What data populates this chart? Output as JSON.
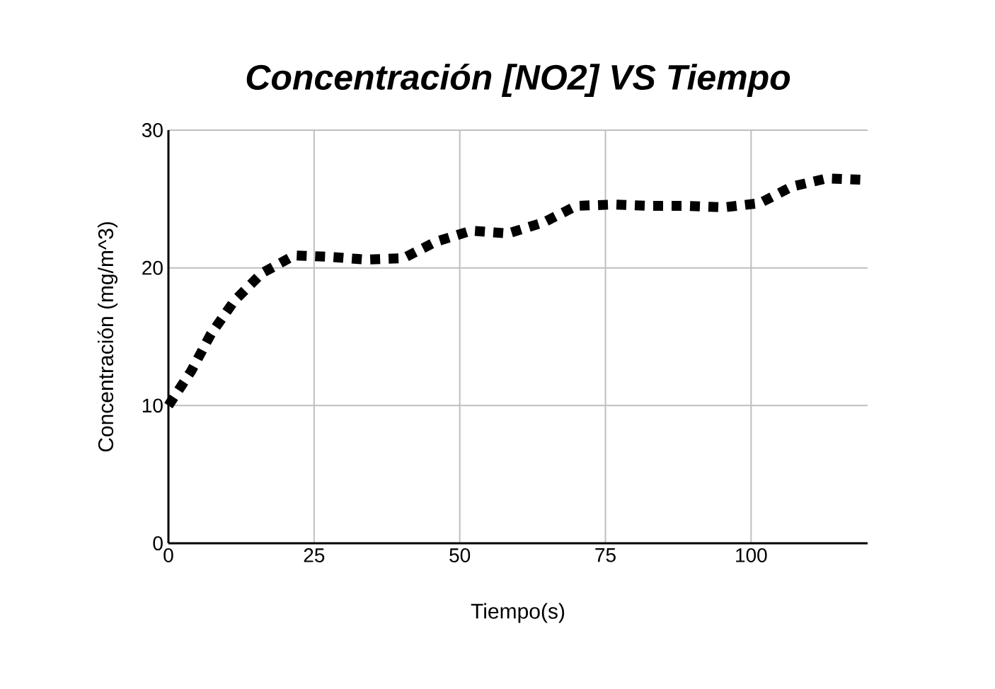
{
  "chart_data": {
    "type": "line",
    "title": "Concentración [NO2] VS Tiempo",
    "xlabel": "Tiempo(s)",
    "ylabel": "Concentración (mg/m^3)",
    "x": [
      0,
      3.9,
      7.3,
      11.3,
      16,
      21.6,
      27.7,
      34,
      40.3,
      45.9,
      52,
      58.3,
      64.4,
      70,
      76.3,
      82.6,
      89,
      95.4,
      101.5,
      107,
      113,
      119
    ],
    "series": [
      {
        "color": "#000000",
        "values": [
          10,
          12.5,
          15.2,
          17.6,
          19.6,
          20.9,
          20.8,
          20.6,
          20.7,
          21.9,
          22.7,
          22.5,
          23.3,
          24.5,
          24.6,
          24.5,
          24.5,
          24.4,
          24.7,
          25.9,
          26.5,
          26.4
        ]
      }
    ],
    "xlim": [
      0,
      120
    ],
    "ylim": [
      0,
      30
    ],
    "xticks": [
      0,
      25,
      50,
      75,
      100
    ],
    "yticks": [
      0,
      10,
      20,
      30
    ],
    "grid": true,
    "line_style": "dotted",
    "marker": "none"
  }
}
